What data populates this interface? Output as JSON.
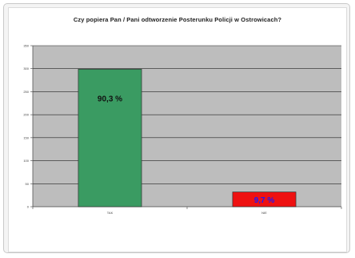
{
  "chart_data": {
    "type": "bar",
    "title": "Czy popiera Pan / Pani odtworzenie Posterunku Policji w Ostrowicach?",
    "categories": [
      "TAK",
      "NIE"
    ],
    "values": [
      299,
      32
    ],
    "data_labels": [
      "90,3 %",
      "9,7 %"
    ],
    "colors": [
      "#3a9b62",
      "#ee1111"
    ],
    "data_label_colors": [
      "#111111",
      "#1a1aff"
    ],
    "ylim": [
      0,
      350
    ],
    "yticks": [
      0,
      50,
      100,
      150,
      200,
      250,
      300,
      350
    ],
    "grid": true,
    "plot_background": "#bdbdbd",
    "xlabel": "",
    "ylabel": ""
  }
}
